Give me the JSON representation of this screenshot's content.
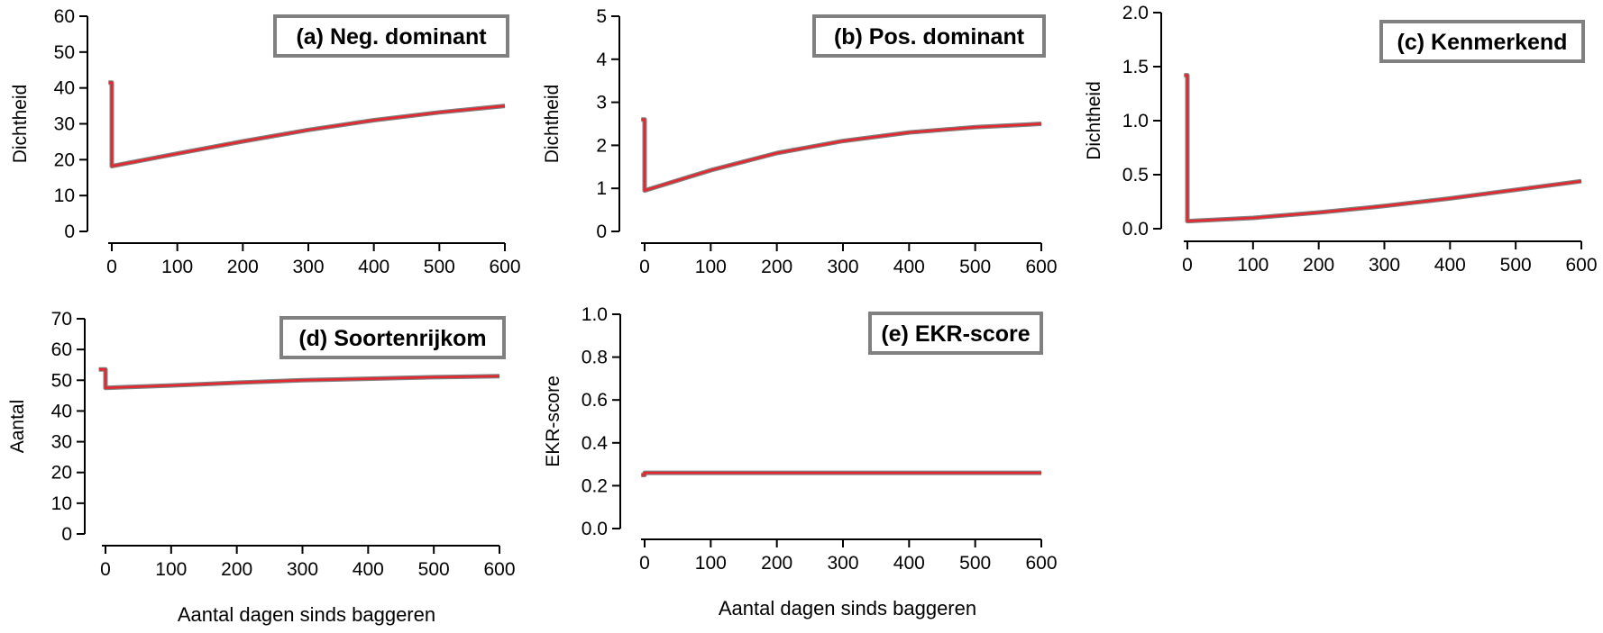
{
  "figure": {
    "xlabel": "Aantal dagen sinds baggeren"
  },
  "colors": {
    "line_red": "#e8262d",
    "line_gray": "#7f7f7f",
    "axis": "#000000",
    "title_border": "#808080"
  },
  "chart_data": [
    {
      "type": "line",
      "title": "(a) Neg. dominant",
      "ylabel": "Dichtheid",
      "xlim": [
        0,
        600
      ],
      "ylim": [
        0,
        60
      ],
      "xticks": [
        0,
        100,
        200,
        300,
        400,
        500,
        600
      ],
      "xtick_labels": [
        "0",
        "100",
        "200",
        "300",
        "400",
        "500",
        "600"
      ],
      "yticks": [
        0,
        10,
        20,
        30,
        40,
        50,
        60
      ],
      "ytick_labels": [
        "0",
        "10",
        "20",
        "30",
        "40",
        "50",
        "60"
      ],
      "grid": false,
      "series": [
        {
          "color": "#e8262d",
          "x": [
            -5,
            0,
            0,
            100,
            200,
            300,
            400,
            500,
            600
          ],
          "y": [
            41.5,
            41.5,
            18.2,
            21.7,
            25.1,
            28.3,
            31.0,
            33.2,
            35.0
          ]
        }
      ]
    },
    {
      "type": "line",
      "title": "(b) Pos. dominant",
      "ylabel": "Dichtheid",
      "xlim": [
        0,
        600
      ],
      "ylim": [
        0,
        5
      ],
      "xticks": [
        0,
        100,
        200,
        300,
        400,
        500,
        600
      ],
      "xtick_labels": [
        "0",
        "100",
        "200",
        "300",
        "400",
        "500",
        "600"
      ],
      "yticks": [
        0,
        1,
        2,
        3,
        4,
        5
      ],
      "ytick_labels": [
        "0",
        "1",
        "2",
        "3",
        "4",
        "5"
      ],
      "grid": false,
      "series": [
        {
          "color": "#e8262d",
          "x": [
            -5,
            0,
            0,
            100,
            200,
            300,
            400,
            500,
            600
          ],
          "y": [
            2.6,
            2.6,
            0.95,
            1.42,
            1.82,
            2.1,
            2.3,
            2.42,
            2.5
          ]
        }
      ]
    },
    {
      "type": "line",
      "title": "(c) Kenmerkend",
      "ylabel": "Dichtheid",
      "xlim": [
        0,
        600
      ],
      "ylim": [
        0,
        2.0
      ],
      "xticks": [
        0,
        100,
        200,
        300,
        400,
        500,
        600
      ],
      "xtick_labels": [
        "0",
        "100",
        "200",
        "300",
        "400",
        "500",
        "600"
      ],
      "yticks": [
        0,
        0.5,
        1.0,
        1.5,
        2.0
      ],
      "ytick_labels": [
        "0.0",
        "0.5",
        "1.0",
        "1.5",
        "2.0"
      ],
      "grid": false,
      "series": [
        {
          "color": "#e8262d",
          "x": [
            -5,
            0,
            0,
            100,
            200,
            300,
            400,
            500,
            600
          ],
          "y": [
            1.42,
            1.42,
            0.07,
            0.1,
            0.15,
            0.21,
            0.28,
            0.36,
            0.44
          ]
        }
      ]
    },
    {
      "type": "line",
      "title": "(d) Soortenrijkom",
      "ylabel": "Aantal",
      "xlim": [
        0,
        600
      ],
      "ylim": [
        0,
        70
      ],
      "xticks": [
        0,
        100,
        200,
        300,
        400,
        500,
        600
      ],
      "xtick_labels": [
        "0",
        "100",
        "200",
        "300",
        "400",
        "500",
        "600"
      ],
      "yticks": [
        0,
        10,
        20,
        30,
        40,
        50,
        60,
        70
      ],
      "ytick_labels": [
        "0",
        "10",
        "20",
        "30",
        "40",
        "50",
        "60",
        "70"
      ],
      "grid": false,
      "series": [
        {
          "color": "#e8262d",
          "x": [
            -10,
            0,
            0,
            100,
            200,
            300,
            400,
            500,
            600
          ],
          "y": [
            53.5,
            53.5,
            47.5,
            48.3,
            49.2,
            50.0,
            50.5,
            51.0,
            51.3
          ]
        }
      ]
    },
    {
      "type": "line",
      "title": "(e) EKR-score",
      "ylabel": "EKR-score",
      "xlim": [
        0,
        600
      ],
      "ylim": [
        0,
        1.0
      ],
      "xticks": [
        0,
        100,
        200,
        300,
        400,
        500,
        600
      ],
      "xtick_labels": [
        "0",
        "100",
        "200",
        "300",
        "400",
        "500",
        "600"
      ],
      "yticks": [
        0,
        0.2,
        0.4,
        0.6,
        0.8,
        1.0
      ],
      "ytick_labels": [
        "0.0",
        "0.2",
        "0.4",
        "0.6",
        "0.8",
        "1.0"
      ],
      "grid": false,
      "series": [
        {
          "color": "#e8262d",
          "x": [
            -5,
            0,
            0,
            100,
            200,
            300,
            400,
            500,
            600
          ],
          "y": [
            0.25,
            0.25,
            0.26,
            0.26,
            0.26,
            0.26,
            0.26,
            0.26,
            0.26
          ]
        }
      ]
    }
  ]
}
